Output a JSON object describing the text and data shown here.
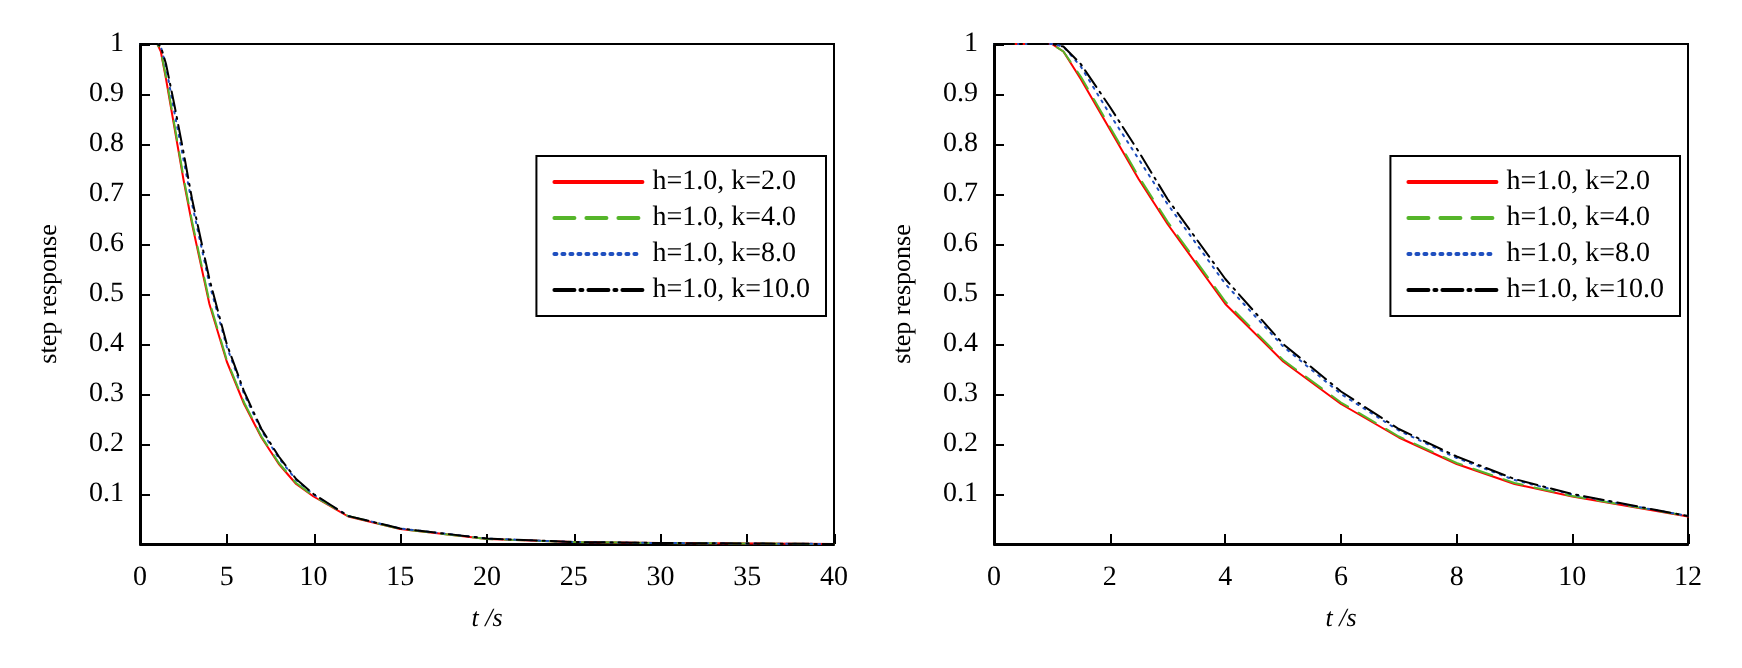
{
  "chart_data": [
    {
      "type": "line",
      "xlabel": "t /s",
      "ylabel": "step response",
      "x": [
        0,
        1,
        1.2,
        1.5,
        2,
        2.5,
        3,
        4,
        5,
        6,
        7,
        8,
        9,
        10,
        11,
        12,
        15,
        20,
        25,
        30,
        40
      ],
      "xlim": [
        0,
        40
      ],
      "xticks": [
        0,
        5,
        10,
        15,
        20,
        25,
        30,
        35,
        40
      ],
      "ylim": [
        0,
        1
      ],
      "yticks": [
        {
          "value": 0,
          "label": null
        },
        0.1,
        0.2,
        0.3,
        0.4,
        0.5,
        0.6,
        0.7,
        0.8,
        0.9,
        1
      ],
      "grid": false,
      "legend": "right",
      "marker": "none",
      "series": [
        {
          "name": "h=1.0, k=2.0",
          "color": "#ff0000",
          "line_style": "solid",
          "values": [
            1,
            1,
            0.985,
            0.93,
            0.83,
            0.73,
            0.64,
            0.48,
            0.365,
            0.28,
            0.213,
            0.16,
            0.12,
            0.095,
            0.075,
            0.055,
            0.03,
            0.01,
            0.004,
            0.002,
            0
          ]
        },
        {
          "name": "h=1.0, k=4.0",
          "color": "#55b52a",
          "line_style": "dashed",
          "values": [
            1,
            1,
            0.985,
            0.935,
            0.835,
            0.735,
            0.645,
            0.485,
            0.368,
            0.283,
            0.215,
            0.162,
            0.122,
            0.096,
            0.076,
            0.056,
            0.03,
            0.01,
            0.004,
            0.002,
            0
          ]
        },
        {
          "name": "h=1.0, k=8.0",
          "color": "#1f4fbf",
          "line_style": "dotted",
          "values": [
            1,
            1,
            0.995,
            0.955,
            0.86,
            0.77,
            0.68,
            0.52,
            0.395,
            0.3,
            0.227,
            0.172,
            0.128,
            0.099,
            0.077,
            0.056,
            0.031,
            0.011,
            0.004,
            0.002,
            0
          ]
        },
        {
          "name": "h=1.0, k=10.0",
          "color": "#000000",
          "line_style": "dashdot",
          "values": [
            1,
            1,
            0.995,
            0.96,
            0.875,
            0.785,
            0.69,
            0.53,
            0.4,
            0.305,
            0.23,
            0.175,
            0.13,
            0.1,
            0.078,
            0.056,
            0.031,
            0.011,
            0.004,
            0.002,
            0
          ]
        }
      ]
    },
    {
      "type": "line",
      "xlabel": "t /s",
      "ylabel": "step response",
      "x": [
        0,
        1,
        1.2,
        1.5,
        2,
        2.5,
        3,
        4,
        5,
        6,
        7,
        8,
        9,
        10,
        11,
        12
      ],
      "xlim": [
        0,
        12
      ],
      "xticks": [
        0,
        2,
        4,
        6,
        8,
        10,
        12
      ],
      "ylim": [
        0,
        1
      ],
      "yticks": [
        {
          "value": 0,
          "label": null
        },
        0.1,
        0.2,
        0.3,
        0.4,
        0.5,
        0.6,
        0.7,
        0.8,
        0.9,
        1
      ],
      "grid": false,
      "legend": "right",
      "marker": "none",
      "series": [
        {
          "name": "h=1.0, k=2.0",
          "color": "#ff0000",
          "line_style": "solid",
          "values": [
            1,
            1,
            0.985,
            0.93,
            0.83,
            0.73,
            0.64,
            0.48,
            0.365,
            0.28,
            0.213,
            0.16,
            0.12,
            0.095,
            0.075,
            0.055
          ]
        },
        {
          "name": "h=1.0, k=4.0",
          "color": "#55b52a",
          "line_style": "dashed",
          "values": [
            1,
            1,
            0.985,
            0.935,
            0.835,
            0.735,
            0.645,
            0.485,
            0.368,
            0.283,
            0.215,
            0.162,
            0.122,
            0.096,
            0.076,
            0.056
          ]
        },
        {
          "name": "h=1.0, k=8.0",
          "color": "#1f4fbf",
          "line_style": "dotted",
          "values": [
            1,
            1,
            0.995,
            0.955,
            0.86,
            0.77,
            0.68,
            0.52,
            0.395,
            0.3,
            0.227,
            0.172,
            0.128,
            0.099,
            0.077,
            0.056
          ]
        },
        {
          "name": "h=1.0, k=10.0",
          "color": "#000000",
          "line_style": "dashdot",
          "values": [
            1,
            1,
            0.995,
            0.96,
            0.875,
            0.785,
            0.69,
            0.53,
            0.4,
            0.305,
            0.23,
            0.175,
            0.13,
            0.1,
            0.078,
            0.056
          ]
        }
      ]
    }
  ]
}
